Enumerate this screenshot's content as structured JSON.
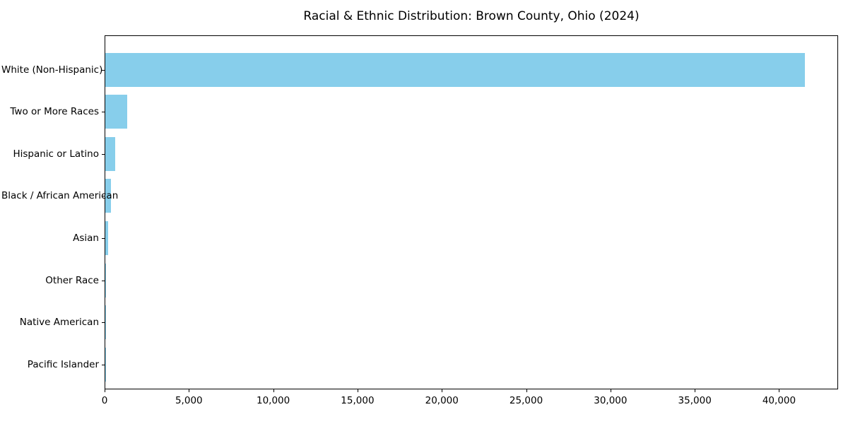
{
  "chart_data": {
    "type": "bar",
    "orientation": "horizontal",
    "title": "Racial & Ethnic Distribution: Brown County, Ohio (2024)",
    "categories": [
      "White (Non-Hispanic)",
      "Two or More Races",
      "Hispanic or Latino",
      "Black / African American",
      "Asian",
      "Other Race",
      "Native American",
      "Pacific Islander"
    ],
    "values": [
      41500,
      1280,
      580,
      320,
      170,
      60,
      35,
      10
    ],
    "xlabel": "",
    "ylabel": "",
    "xlim": [
      0,
      43500
    ],
    "xticks": [
      0,
      5000,
      10000,
      15000,
      20000,
      25000,
      30000,
      35000,
      40000
    ],
    "xtick_label_format": "comma",
    "grid": false,
    "legend_position": "none",
    "bar_color": "#87CEEB",
    "background_color": "#FFFFFF",
    "text_color": "#000000"
  }
}
